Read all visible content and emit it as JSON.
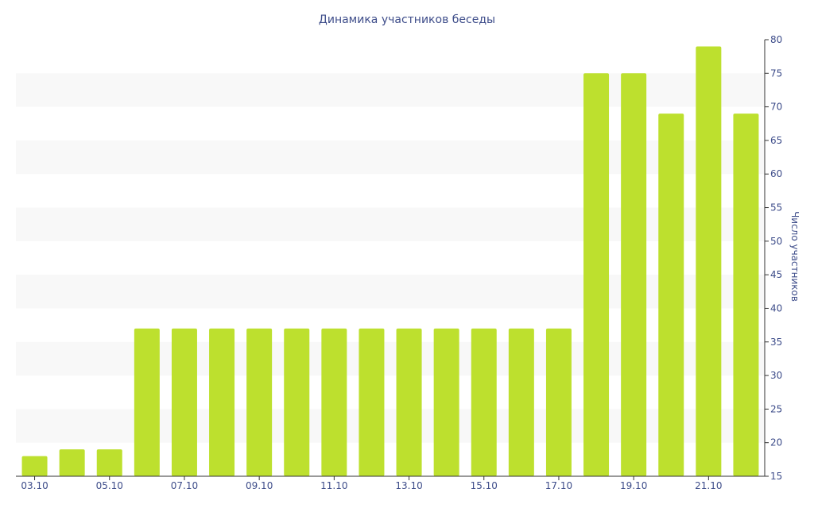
{
  "chart_data": {
    "type": "bar",
    "title": "Динамика участников беседы",
    "ylabel": "Число участников",
    "xlabel": "",
    "y_axis_side": "right",
    "ylim": [
      15,
      80
    ],
    "yticks": [
      15,
      20,
      25,
      30,
      35,
      40,
      45,
      50,
      55,
      60,
      65,
      70,
      75,
      80
    ],
    "grid": "alternating horizontal bands",
    "categories": [
      "03.10",
      "04.10",
      "05.10",
      "06.10",
      "07.10",
      "08.10",
      "09.10",
      "10.10",
      "11.10",
      "12.10",
      "13.10",
      "14.10",
      "15.10",
      "16.10",
      "17.10",
      "18.10",
      "19.10",
      "20.10",
      "21.10",
      "22.10"
    ],
    "xtick_labels": [
      "03.10",
      "05.10",
      "07.10",
      "09.10",
      "11.10",
      "13.10",
      "15.10",
      "17.10",
      "19.10",
      "21.10"
    ],
    "values": [
      18,
      19,
      19,
      37,
      37,
      37,
      37,
      37,
      37,
      37,
      37,
      37,
      37,
      37,
      37,
      75,
      75,
      69,
      79,
      69
    ],
    "colors": {
      "bar": "#bde02e",
      "band": "#f8f8f8",
      "axis": "#333333",
      "text": "#3e4d8a"
    }
  }
}
